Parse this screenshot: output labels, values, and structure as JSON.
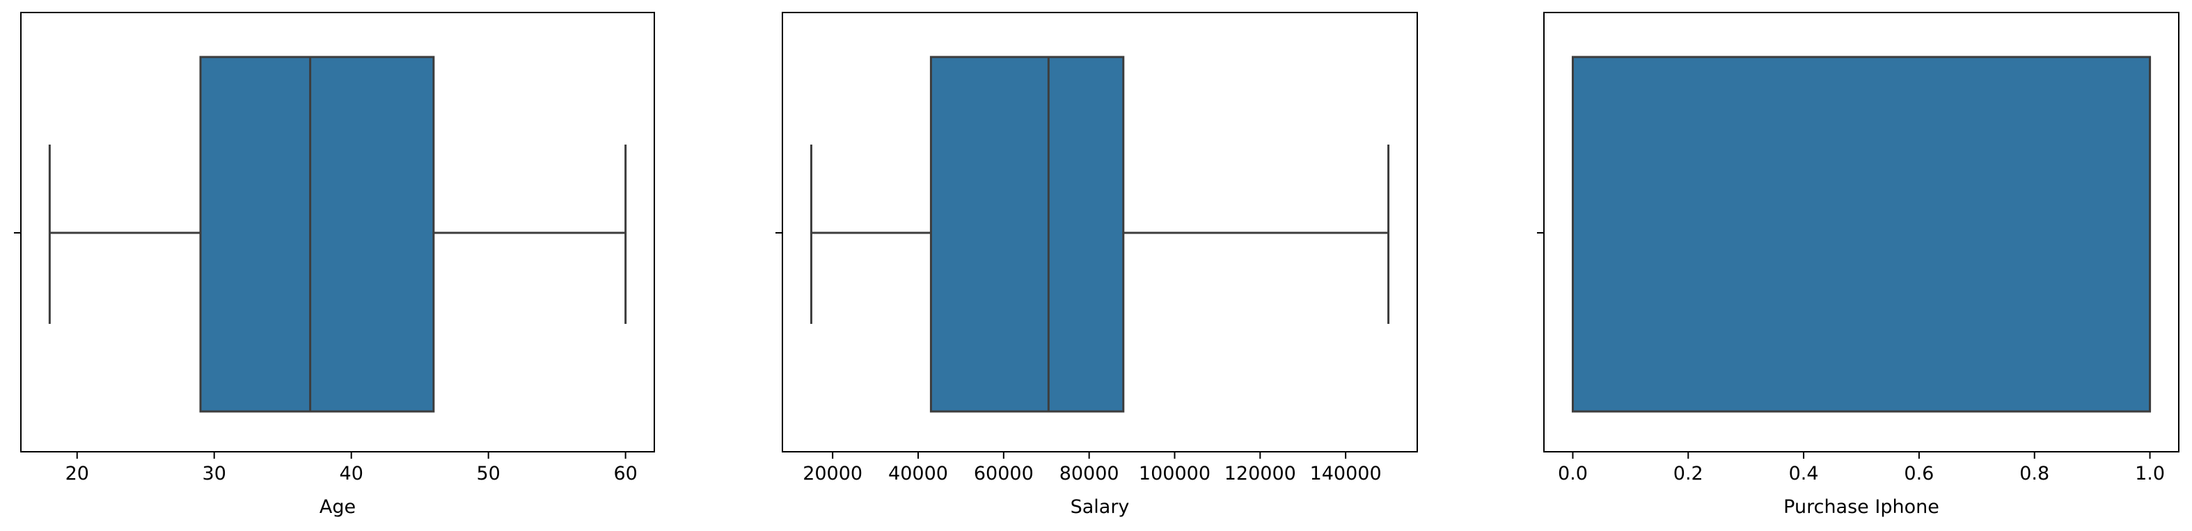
{
  "chart_data": [
    {
      "type": "box",
      "xlabel": "Age",
      "ylabel": "",
      "xlim": [
        15.9,
        62.1
      ],
      "xticks": [
        20,
        30,
        40,
        50,
        60
      ],
      "xtick_labels": [
        "20",
        "30",
        "40",
        "50",
        "60"
      ],
      "stats": {
        "whislo": 18,
        "q1": 29,
        "med": 37,
        "q3": 46,
        "whishi": 60
      },
      "grid": false,
      "box_color": "#3274a1",
      "line_color": "#3d3d3d"
    },
    {
      "type": "box",
      "xlabel": "Salary",
      "ylabel": "",
      "xlim": [
        8250,
        156750
      ],
      "xticks": [
        20000,
        40000,
        60000,
        80000,
        100000,
        120000,
        140000
      ],
      "xtick_labels": [
        "20000",
        "40000",
        "60000",
        "80000",
        "100000",
        "120000",
        "140000"
      ],
      "stats": {
        "whislo": 15000,
        "q1": 43000,
        "med": 70500,
        "q3": 88000,
        "whishi": 150000
      },
      "grid": false,
      "box_color": "#3274a1",
      "line_color": "#3d3d3d"
    },
    {
      "type": "box",
      "xlabel": "Purchase Iphone",
      "ylabel": "",
      "xlim": [
        -0.05,
        1.05
      ],
      "xticks": [
        0.0,
        0.2,
        0.4,
        0.6,
        0.8,
        1.0
      ],
      "xtick_labels": [
        "0.0",
        "0.2",
        "0.4",
        "0.6",
        "0.8",
        "1.0"
      ],
      "stats": {
        "whislo": 0,
        "q1": 0,
        "med": 1,
        "q3": 1,
        "whishi": 1
      },
      "grid": false,
      "box_color": "#3274a1",
      "line_color": "#3d3d3d"
    }
  ]
}
